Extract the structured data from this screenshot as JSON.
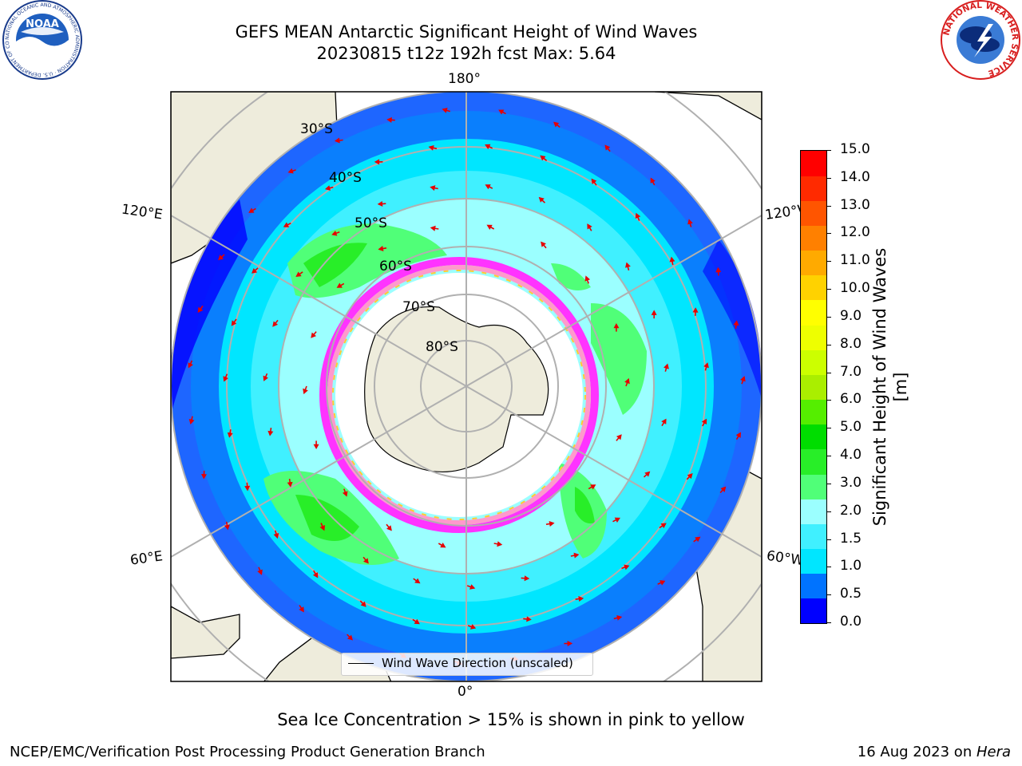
{
  "header": {
    "title_line1": "GEFS MEAN Antarctic Significant Height of Wind Waves",
    "title_line2": "20230815 t12z 192h fcst   Max: 5.64"
  },
  "logos": {
    "left": "noaa-logo",
    "right": "national-weather-service-logo",
    "noaa_text": "NOAA",
    "noaa_ring_text": "NATIONAL OCEANIC AND ATMOSPHERIC ADMINISTRATION · U.S. DEPARTMENT OF COMMERCE",
    "nws_ring_text": "NATIONAL WEATHER SERVICE"
  },
  "map": {
    "projection": "south-polar-stereographic",
    "longitude_labels": [
      "180°",
      "120°E",
      "120°W",
      "60°E",
      "60°W",
      "0°"
    ],
    "latitude_labels": [
      "30°S",
      "40°S",
      "50°S",
      "60°S",
      "70°S",
      "80°S"
    ],
    "legend_label": "Wind Wave Direction (unscaled)",
    "arrow_color": "#e60000",
    "land_color": "#eeecdc",
    "ice_colors": [
      "#ff33ff",
      "#ff99cc",
      "#ffcc33",
      "#ffff66"
    ]
  },
  "colorbar": {
    "label": "Significant Height of Wind Waves [m]",
    "ticks": [
      "15.0",
      "14.0",
      "13.0",
      "12.0",
      "11.0",
      "10.0",
      "9.0",
      "8.0",
      "7.0",
      "6.0",
      "5.0",
      "4.0",
      "3.0",
      "2.0",
      "1.5",
      "1.0",
      "0.5",
      "0.0"
    ],
    "colors_bottom_to_top": [
      "#0000ff",
      "#0073ff",
      "#00e6ff",
      "#40f0ff",
      "#9bffff",
      "#50ff78",
      "#28ee28",
      "#00dd00",
      "#55ee00",
      "#aaee00",
      "#ccff00",
      "#eeff00",
      "#ffff00",
      "#ffd200",
      "#ffaa00",
      "#ff8000",
      "#ff5500",
      "#ff2a00",
      "#ff0000"
    ]
  },
  "caption": "Sea Ice Concentration > 15% is shown in pink to yellow",
  "footer": {
    "left": "NCEP/EMC/Verification Post Processing Product Generation Branch",
    "right_prefix": "16 Aug 2023 on ",
    "right_machine": "Hera"
  }
}
